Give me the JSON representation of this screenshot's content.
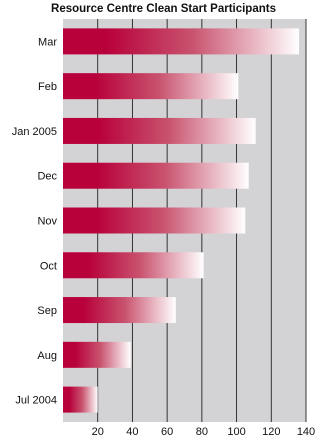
{
  "chart_data": {
    "type": "bar",
    "orientation": "horizontal",
    "title": "Resource Centre Clean Start Participants",
    "xlabel": "",
    "ylabel": "",
    "categories": [
      "Mar",
      "Feb",
      "Jan 2005",
      "Dec",
      "Nov",
      "Oct",
      "Sep",
      "Aug",
      "Jul 2004"
    ],
    "values": [
      136,
      101,
      111,
      107,
      105,
      81,
      65,
      39,
      20
    ],
    "xlim": [
      0,
      140
    ],
    "xticks": [
      "20",
      "40",
      "60",
      "80",
      "100",
      "120",
      "140"
    ],
    "grid": "vertical",
    "legend": "none",
    "colors": {
      "plot_background": "#d3d3d5",
      "gridline": "#222222",
      "bar_start": "#b8003a",
      "bar_mid": "#c9536f",
      "bar_end": "#ffffff"
    }
  }
}
